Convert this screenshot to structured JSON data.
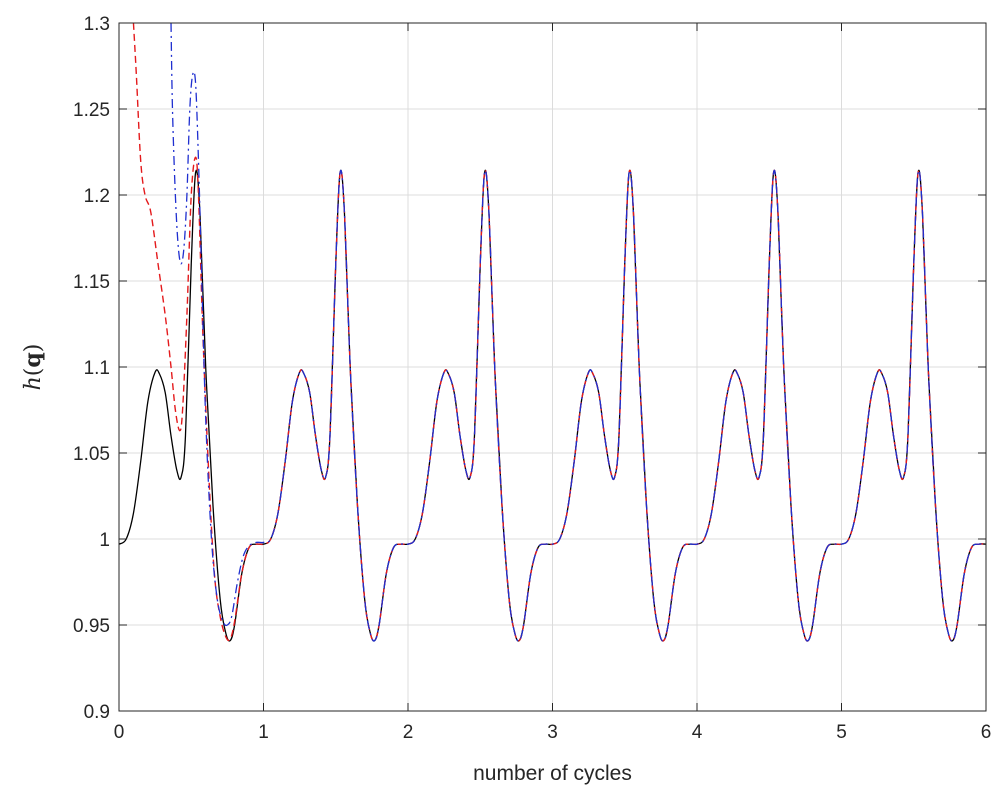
{
  "chart_data": {
    "type": "line",
    "title": "",
    "xlabel": "number of cycles",
    "ylabel": "h(q)",
    "ylabel_parts": {
      "fn": "h",
      "open": "(",
      "arg": "q",
      "close": ")"
    },
    "xlim": [
      0,
      6
    ],
    "ylim": [
      0.9,
      1.3
    ],
    "xticks": [
      0,
      1,
      2,
      3,
      4,
      5,
      6
    ],
    "xtick_labels": [
      "0",
      "1",
      "2",
      "3",
      "4",
      "5",
      "6"
    ],
    "yticks": [
      0.9,
      0.95,
      1.0,
      1.05,
      1.1,
      1.15,
      1.2,
      1.25,
      1.3
    ],
    "ytick_labels": [
      "0.9",
      "0.95",
      "1",
      "1.05",
      "1.1",
      "1.15",
      "1.2",
      "1.25",
      "1.3"
    ],
    "grid": true,
    "legend": "none",
    "periodic_cycle": {
      "x": [
        0,
        0.05,
        0.1,
        0.15,
        0.2,
        0.25,
        0.28,
        0.32,
        0.36,
        0.4,
        0.43,
        0.46,
        0.5,
        0.53,
        0.56,
        0.6,
        0.65,
        0.7,
        0.74,
        0.77,
        0.8,
        0.85,
        0.9,
        0.95,
        1.0
      ],
      "y": [
        0.997,
        1.0,
        1.015,
        1.045,
        1.08,
        1.097,
        1.096,
        1.085,
        1.06,
        1.04,
        1.036,
        1.06,
        1.16,
        1.213,
        1.19,
        1.1,
        1.02,
        0.965,
        0.945,
        0.941,
        0.95,
        0.98,
        0.995,
        0.997,
        0.997
      ]
    },
    "series": [
      {
        "style": "solid",
        "color": "#000000",
        "start_cycle": 0,
        "transient": {
          "x": [],
          "y": []
        }
      },
      {
        "style": "dashed",
        "color": "#e41a1c",
        "start_cycle": 1,
        "transient": {
          "x": [
            0.1,
            0.12,
            0.15,
            0.18,
            0.22,
            0.27,
            0.32,
            0.36,
            0.39,
            0.42,
            0.44,
            0.47,
            0.5,
            0.53,
            0.55,
            0.58,
            0.62,
            0.66,
            0.7,
            0.74,
            0.77,
            0.8,
            0.85,
            0.9,
            0.95,
            1.0
          ],
          "y": [
            1.3,
            1.27,
            1.22,
            1.2,
            1.19,
            1.16,
            1.13,
            1.1,
            1.075,
            1.063,
            1.075,
            1.13,
            1.2,
            1.222,
            1.2,
            1.12,
            1.04,
            0.98,
            0.955,
            0.943,
            0.942,
            0.952,
            0.98,
            0.995,
            0.997,
            0.997
          ]
        }
      },
      {
        "style": "dashdot",
        "color": "#1f2fd0",
        "start_cycle": 1,
        "transient": {
          "x": [
            0.36,
            0.37,
            0.39,
            0.41,
            0.43,
            0.45,
            0.47,
            0.49,
            0.51,
            0.53,
            0.55,
            0.57,
            0.6,
            0.64,
            0.68,
            0.72,
            0.75,
            0.78,
            0.82,
            0.86,
            0.9,
            0.95,
            1.0
          ],
          "y": [
            1.3,
            1.25,
            1.2,
            1.17,
            1.16,
            1.17,
            1.2,
            1.25,
            1.27,
            1.265,
            1.22,
            1.16,
            1.07,
            1.0,
            0.965,
            0.952,
            0.95,
            0.955,
            0.975,
            0.99,
            0.996,
            0.998,
            0.998
          ]
        }
      }
    ]
  }
}
